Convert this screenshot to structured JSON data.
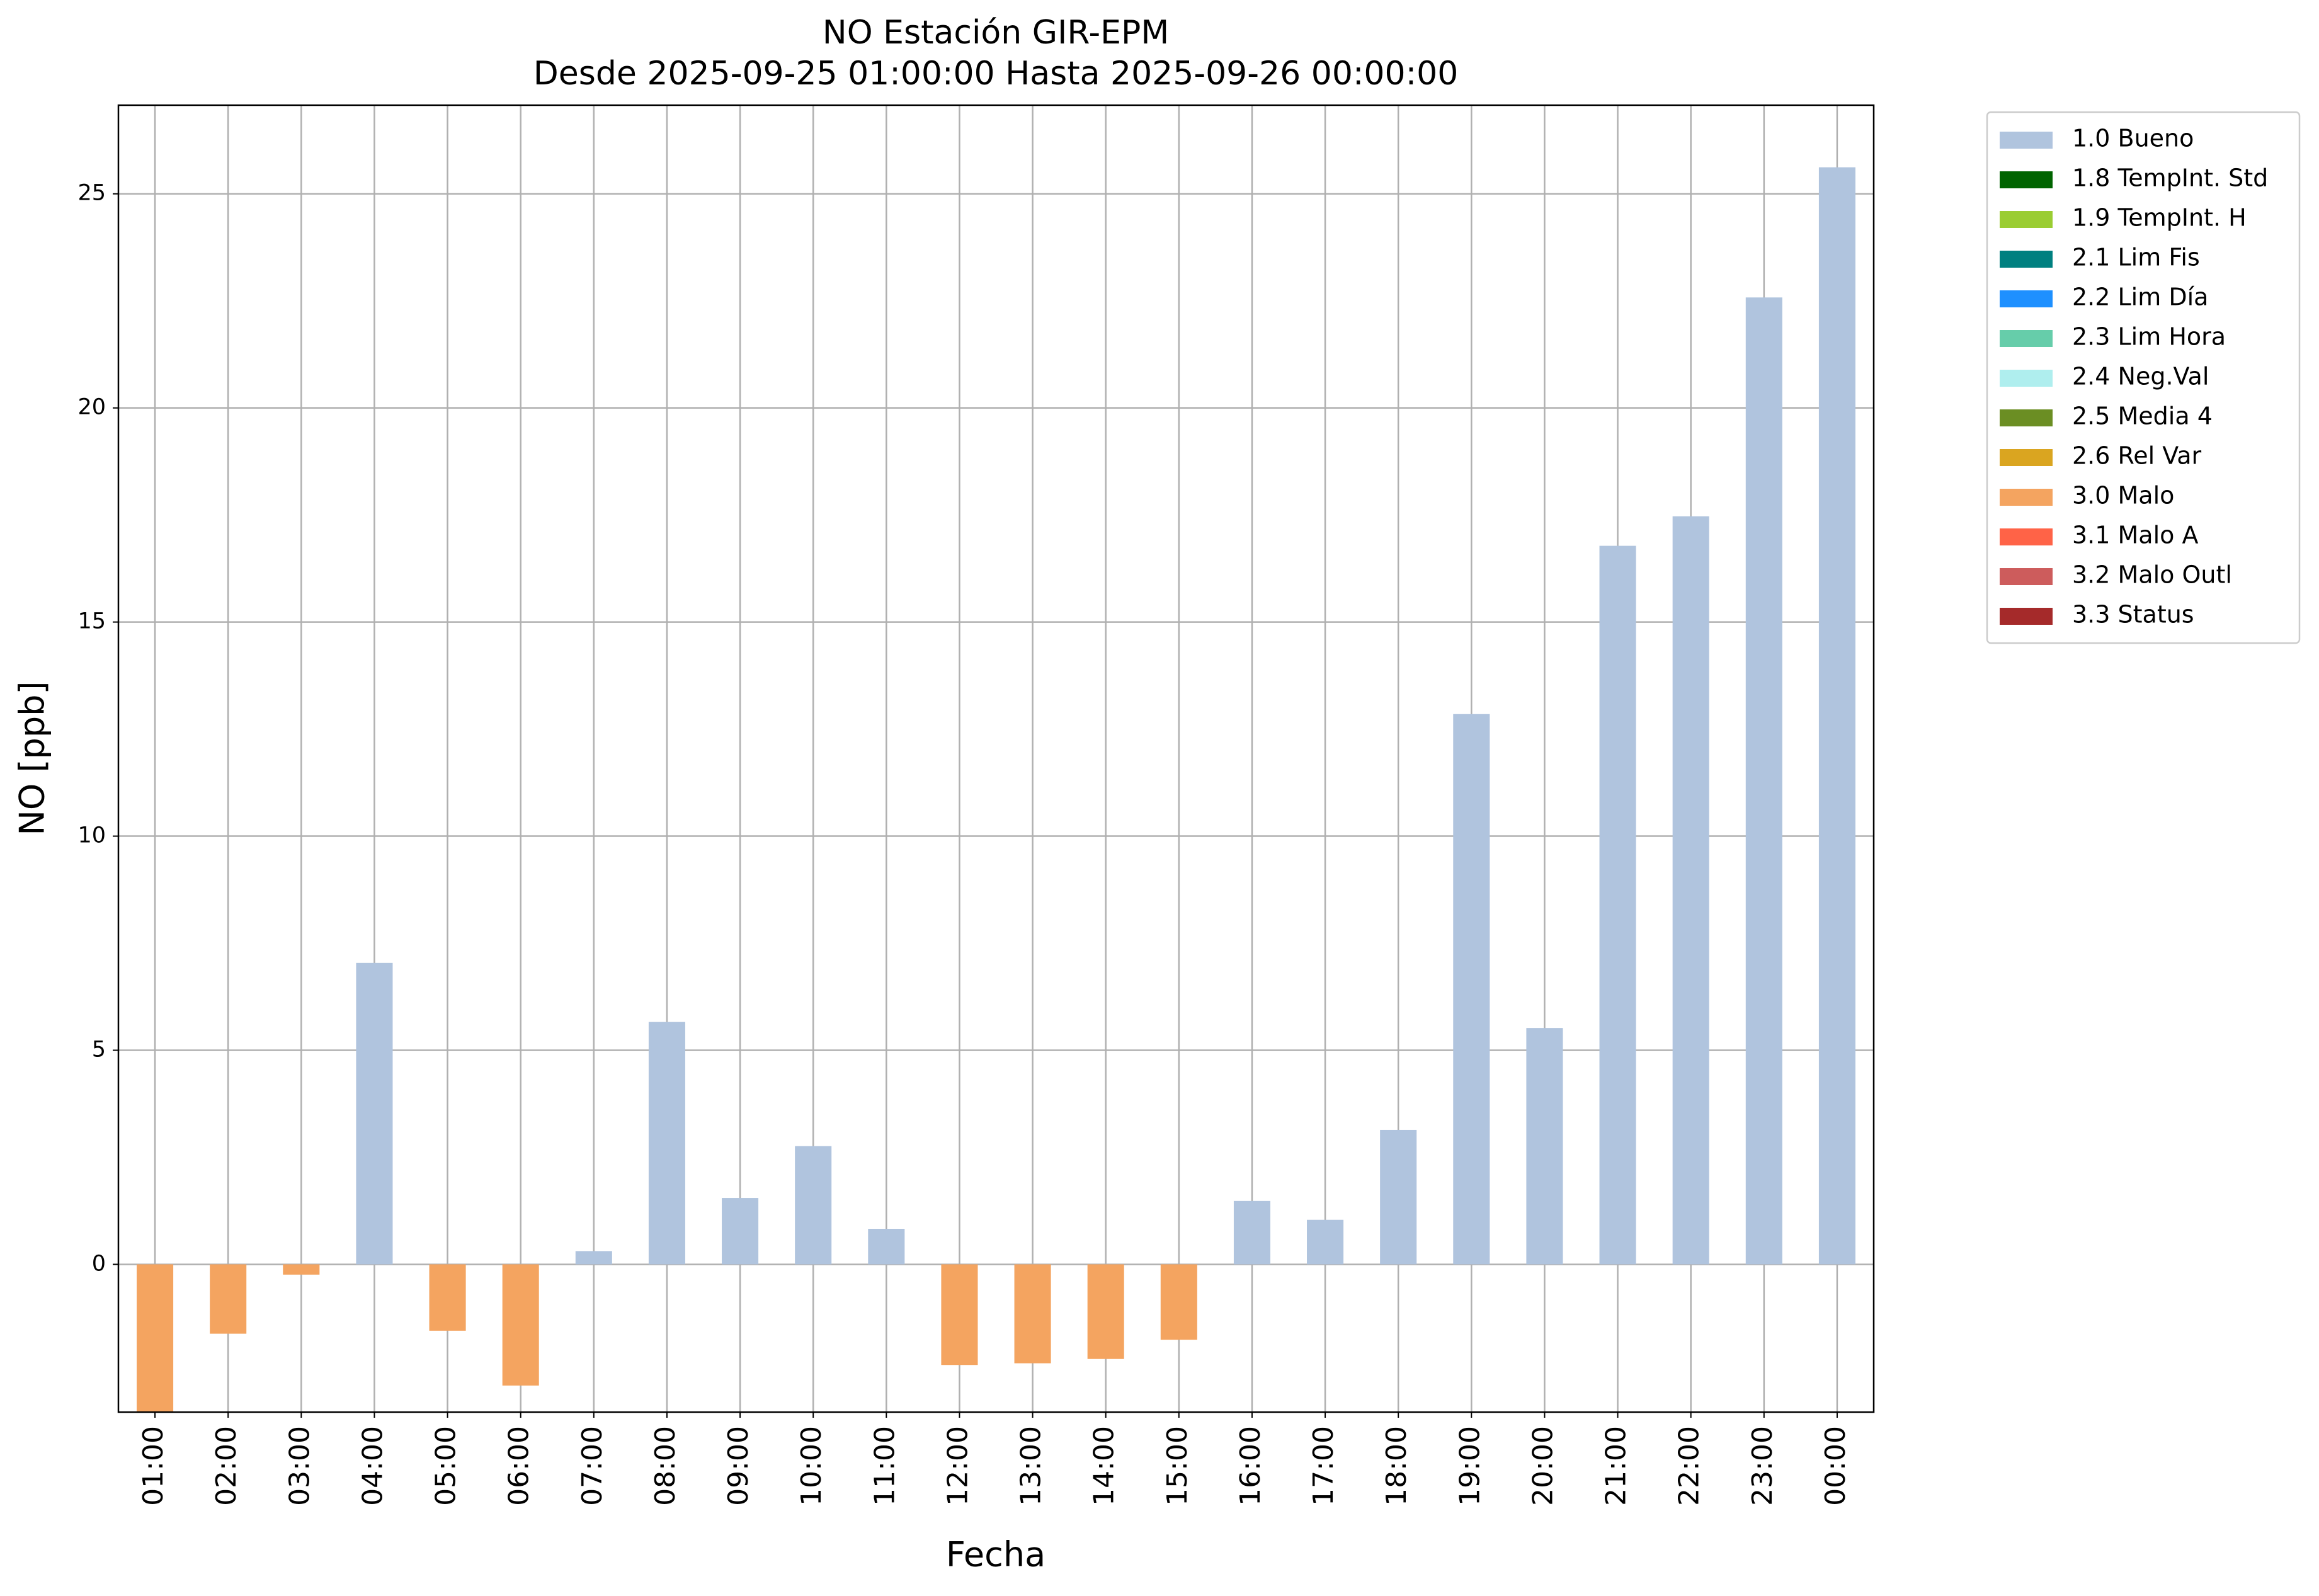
{
  "chart_data": {
    "type": "bar",
    "title": "NO Estación GIR-EPM",
    "subtitle": "Desde 2025-09-25 01:00:00 Hasta 2025-09-26 00:00:00",
    "x_label": "Fecha",
    "y_label": "NO [ppb]",
    "categories": [
      "01:00",
      "02:00",
      "03:00",
      "04:00",
      "05:00",
      "06:00",
      "07:00",
      "08:00",
      "09:00",
      "10:00",
      "11:00",
      "12:00",
      "13:00",
      "14:00",
      "15:00",
      "16:00",
      "17:00",
      "18:00",
      "19:00",
      "20:00",
      "21:00",
      "22:00",
      "23:00",
      "00:00"
    ],
    "ylim": [
      -3.45,
      27.07
    ],
    "yticks": [
      0,
      5,
      10,
      15,
      20,
      25
    ],
    "grid": true,
    "legend": "outside-upper-right",
    "series": [
      {
        "name": "1.0 Bueno",
        "color": "#b0c4de",
        "values": [
          null,
          null,
          null,
          7.04,
          null,
          null,
          0.31,
          5.66,
          1.55,
          2.76,
          0.83,
          null,
          null,
          null,
          null,
          1.48,
          1.04,
          3.14,
          12.85,
          5.52,
          16.78,
          17.47,
          22.58,
          25.62
        ]
      },
      {
        "name": "1.8 TempInt. Std",
        "color": "#006400",
        "values": [
          null,
          null,
          null,
          null,
          null,
          null,
          null,
          null,
          null,
          null,
          null,
          null,
          null,
          null,
          null,
          null,
          null,
          null,
          null,
          null,
          null,
          null,
          null,
          null
        ]
      },
      {
        "name": "1.9 TempInt. H",
        "color": "#9acd32",
        "values": [
          null,
          null,
          null,
          null,
          null,
          null,
          null,
          null,
          null,
          null,
          null,
          null,
          null,
          null,
          null,
          null,
          null,
          null,
          null,
          null,
          null,
          null,
          null,
          null
        ]
      },
      {
        "name": "2.1 Lim Fis",
        "color": "#008080",
        "values": [
          null,
          null,
          null,
          null,
          null,
          null,
          null,
          null,
          null,
          null,
          null,
          null,
          null,
          null,
          null,
          null,
          null,
          null,
          null,
          null,
          null,
          null,
          null,
          null
        ]
      },
      {
        "name": "2.2 Lim Día",
        "color": "#1e90ff",
        "values": [
          null,
          null,
          null,
          null,
          null,
          null,
          null,
          null,
          null,
          null,
          null,
          null,
          null,
          null,
          null,
          null,
          null,
          null,
          null,
          null,
          null,
          null,
          null,
          null
        ]
      },
      {
        "name": "2.3 Lim Hora",
        "color": "#66cdaa",
        "values": [
          null,
          null,
          null,
          null,
          null,
          null,
          null,
          null,
          null,
          null,
          null,
          null,
          null,
          null,
          null,
          null,
          null,
          null,
          null,
          null,
          null,
          null,
          null,
          null
        ]
      },
      {
        "name": "2.4 Neg.Val",
        "color": "#afeeee",
        "values": [
          null,
          null,
          null,
          null,
          null,
          null,
          null,
          null,
          null,
          null,
          null,
          null,
          null,
          null,
          null,
          null,
          null,
          null,
          null,
          null,
          null,
          null,
          null,
          null
        ]
      },
      {
        "name": "2.5 Media 4",
        "color": "#6b8e23",
        "values": [
          null,
          null,
          null,
          null,
          null,
          null,
          null,
          null,
          null,
          null,
          null,
          null,
          null,
          null,
          null,
          null,
          null,
          null,
          null,
          null,
          null,
          null,
          null,
          null
        ]
      },
      {
        "name": "2.6 Rel Var",
        "color": "#daa520",
        "values": [
          null,
          null,
          null,
          null,
          null,
          null,
          null,
          null,
          null,
          null,
          null,
          null,
          null,
          null,
          null,
          null,
          null,
          null,
          null,
          null,
          null,
          null,
          null,
          null
        ]
      },
      {
        "name": "3.0 Malo",
        "color": "#f4a460",
        "values": [
          -3.5,
          -1.62,
          -0.24,
          null,
          -1.55,
          -2.83,
          null,
          null,
          null,
          null,
          null,
          -2.35,
          -2.31,
          -2.21,
          -1.76,
          null,
          null,
          null,
          null,
          null,
          null,
          null,
          null,
          null
        ]
      },
      {
        "name": "3.1 Malo A",
        "color": "#ff6347",
        "values": [
          null,
          null,
          null,
          null,
          null,
          null,
          null,
          null,
          null,
          null,
          null,
          null,
          null,
          null,
          null,
          null,
          null,
          null,
          null,
          null,
          null,
          null,
          null,
          null
        ]
      },
      {
        "name": "3.2 Malo Outl",
        "color": "#cd5c5c",
        "values": [
          null,
          null,
          null,
          null,
          null,
          null,
          null,
          null,
          null,
          null,
          null,
          null,
          null,
          null,
          null,
          null,
          null,
          null,
          null,
          null,
          null,
          null,
          null,
          null
        ]
      },
      {
        "name": "3.3 Status",
        "color": "#a52a2a",
        "values": [
          null,
          null,
          null,
          null,
          null,
          null,
          null,
          null,
          null,
          null,
          null,
          null,
          null,
          null,
          null,
          null,
          null,
          null,
          null,
          null,
          null,
          null,
          null,
          null
        ]
      }
    ]
  }
}
